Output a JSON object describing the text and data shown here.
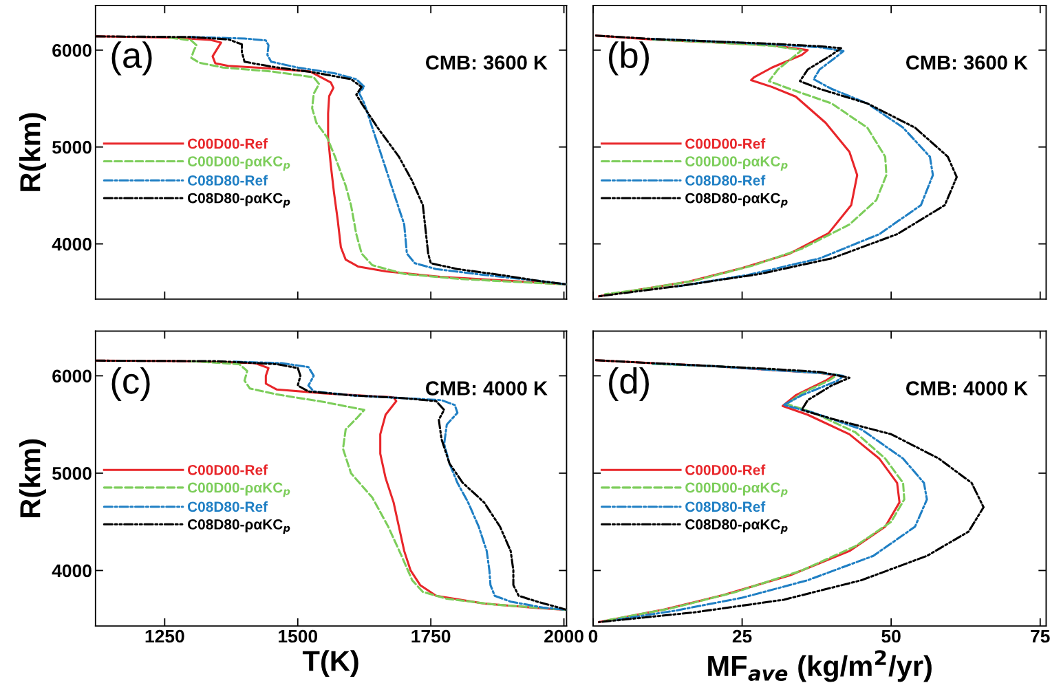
{
  "chart_data": [
    {
      "type": "line",
      "annotations": [
        "(a)",
        "CMB: 3600 K"
      ],
      "ylabel": "R(km)",
      "xlim": [
        1120,
        2005
      ],
      "ylim": [
        3430,
        6460
      ],
      "xticks": [
        1250,
        1500,
        1750,
        2000
      ],
      "yticks": [
        4000,
        5000,
        6000
      ],
      "tick_labels": "y",
      "legend": "left",
      "grid": false,
      "series": [
        {
          "name": "C00D00-Ref",
          "color": "#e8262a",
          "line_style": "solid",
          "x": [
            1122,
            1265,
            1336,
            1356,
            1348,
            1340,
            1345,
            1369,
            1433,
            1523,
            1562,
            1567,
            1559,
            1557,
            1557,
            1562,
            1568,
            1575,
            1581,
            1590,
            1613,
            1665,
            1768,
            1897,
            2005
          ],
          "values": [
            6142,
            6128,
            6106,
            6078,
            6007,
            5936,
            5865,
            5837,
            5816,
            5780,
            5667,
            5610,
            5525,
            5348,
            5100,
            4816,
            4532,
            4249,
            3965,
            3838,
            3767,
            3717,
            3660,
            3618,
            3582
          ]
        },
        {
          "name": "C00D00-ραKC$_{p}$",
          "color": "#7ccd5a",
          "line_style": "dashed",
          "x": [
            1260,
            1300,
            1310,
            1305,
            1300,
            1315,
            1360,
            1450,
            1530,
            1540,
            1530,
            1527,
            1535,
            1555,
            1570,
            1590,
            1600,
            1610,
            1620,
            1640,
            1700,
            1800,
            1900,
            2005
          ],
          "values": [
            6128,
            6100,
            6050,
            6000,
            5920,
            5870,
            5820,
            5780,
            5720,
            5650,
            5550,
            5400,
            5250,
            5100,
            4900,
            4600,
            4400,
            4100,
            3900,
            3780,
            3690,
            3640,
            3610,
            3582
          ]
        },
        {
          "name": "C08D80-Ref",
          "color": "#1f7fc4",
          "line_style": "dashdot",
          "x": [
            1300,
            1400,
            1440,
            1445,
            1443,
            1450,
            1500,
            1570,
            1610,
            1625,
            1615,
            1625,
            1640,
            1655,
            1670,
            1685,
            1700,
            1705,
            1720,
            1760,
            1850,
            1950,
            2005
          ],
          "values": [
            6135,
            6120,
            6100,
            6050,
            5950,
            5880,
            5820,
            5760,
            5700,
            5620,
            5560,
            5450,
            5200,
            4950,
            4700,
            4450,
            4200,
            3900,
            3800,
            3740,
            3680,
            3620,
            3582
          ]
        },
        {
          "name": "C08D80-ραKC$_{p}$",
          "color": "#000000",
          "line_style": "dashdotdot",
          "x": [
            1122,
            1300,
            1370,
            1395,
            1395,
            1400,
            1450,
            1530,
            1600,
            1620,
            1610,
            1620,
            1650,
            1690,
            1715,
            1735,
            1740,
            1745,
            1750,
            1800,
            1880,
            1950,
            2005
          ],
          "values": [
            6142,
            6135,
            6110,
            6060,
            5980,
            5880,
            5830,
            5770,
            5700,
            5620,
            5540,
            5450,
            5200,
            4900,
            4650,
            4400,
            4150,
            3900,
            3800,
            3740,
            3680,
            3620,
            3582
          ]
        }
      ]
    },
    {
      "type": "line",
      "annotations": [
        "(b)",
        "CMB: 3600 K"
      ],
      "xlim": [
        0,
        76
      ],
      "ylim": [
        3430,
        6460
      ],
      "xticks": [
        0,
        25,
        50,
        75
      ],
      "yticks": [
        4000,
        5000,
        6000
      ],
      "tick_labels": false,
      "legend": "left",
      "grid": false,
      "series": [
        {
          "name": "C00D00-Ref",
          "color": "#e8262a",
          "line_style": "solid",
          "x": [
            0.5,
            10,
            20,
            30,
            36,
            35,
            30,
            27,
            26.5,
            30,
            34,
            39,
            43,
            44.3,
            43.3,
            39.5,
            33,
            25,
            16,
            8,
            1
          ],
          "values": [
            6150,
            6110,
            6080,
            6050,
            6000,
            5950,
            5820,
            5720,
            5690,
            5620,
            5520,
            5250,
            4950,
            4710,
            4400,
            4110,
            3900,
            3750,
            3610,
            3530,
            3460
          ]
        },
        {
          "name": "C00D00-ραKC$_{p}$",
          "color": "#7ccd5a",
          "line_style": "dashed",
          "x": [
            10,
            20,
            30,
            35,
            34,
            31,
            29.5,
            33,
            40,
            46,
            49,
            49.2,
            47.5,
            43,
            35,
            27,
            17,
            8,
            2
          ],
          "values": [
            6110,
            6080,
            6045,
            6000,
            5950,
            5800,
            5680,
            5600,
            5450,
            5200,
            4900,
            4710,
            4450,
            4200,
            3950,
            3780,
            3620,
            3530,
            3480
          ]
        },
        {
          "name": "C08D80-Ref",
          "color": "#1f7fc4",
          "line_style": "dashdot",
          "x": [
            10,
            20,
            30,
            38,
            42,
            41,
            38,
            37,
            40,
            46,
            52,
            56.5,
            57,
            55,
            48,
            38,
            26,
            14
          ],
          "values": [
            6115,
            6090,
            6060,
            6030,
            5990,
            5940,
            5800,
            5700,
            5600,
            5450,
            5200,
            4900,
            4710,
            4400,
            4100,
            3850,
            3680,
            3560
          ]
        },
        {
          "name": "C08D80-ραKC$_{p}$",
          "color": "#000000",
          "line_style": "dashdotdot",
          "x": [
            0.5,
            10,
            20,
            30,
            38,
            41.6,
            40,
            36,
            34.7,
            38,
            46,
            54,
            59.5,
            61,
            59,
            51,
            40,
            28,
            15,
            1
          ],
          "values": [
            6150,
            6115,
            6090,
            6065,
            6040,
            6020,
            5950,
            5800,
            5680,
            5600,
            5450,
            5200,
            4900,
            4690,
            4400,
            4100,
            3850,
            3690,
            3570,
            3460
          ]
        }
      ]
    },
    {
      "type": "line",
      "annotations": [
        "(c)",
        "CMB: 4000 K"
      ],
      "xlabel": "T(K)",
      "ylabel": "R(km)",
      "xlim": [
        1120,
        2005
      ],
      "ylim": [
        3430,
        6460
      ],
      "xticks": [
        1250,
        1500,
        1750,
        2000
      ],
      "yticks": [
        4000,
        5000,
        6000
      ],
      "legend": "left",
      "grid": false,
      "series": [
        {
          "name": "C00D00-Ref",
          "color": "#e8262a",
          "line_style": "solid",
          "x": [
            1122,
            1300,
            1420,
            1445,
            1440,
            1440,
            1460,
            1550,
            1640,
            1680,
            1685,
            1665,
            1655,
            1655,
            1665,
            1680,
            1690,
            1700,
            1712,
            1730,
            1760,
            1850,
            1950,
            2005
          ],
          "values": [
            6156,
            6150,
            6130,
            6080,
            6000,
            5920,
            5860,
            5820,
            5790,
            5780,
            5740,
            5600,
            5400,
            5200,
            4950,
            4700,
            4450,
            4200,
            4000,
            3850,
            3740,
            3660,
            3615,
            3596
          ]
        },
        {
          "name": "C00D00-ραKC$_{p}$",
          "color": "#7ccd5a",
          "line_style": "dashed",
          "x": [
            1300,
            1390,
            1405,
            1400,
            1410,
            1460,
            1550,
            1625,
            1610,
            1590,
            1585,
            1600,
            1640,
            1670,
            1695,
            1715,
            1735,
            1780,
            1870,
            2005
          ],
          "values": [
            6150,
            6120,
            6050,
            5950,
            5870,
            5810,
            5730,
            5650,
            5560,
            5450,
            5250,
            5000,
            4750,
            4450,
            4150,
            3900,
            3780,
            3710,
            3650,
            3596
          ]
        },
        {
          "name": "C08D80-Ref",
          "color": "#1f7fc4",
          "line_style": "dashdot",
          "x": [
            1380,
            1470,
            1520,
            1530,
            1520,
            1530,
            1600,
            1700,
            1770,
            1795,
            1800,
            1780,
            1775,
            1785,
            1800,
            1820,
            1840,
            1855,
            1860,
            1862,
            1870,
            1900,
            1960,
            2005
          ],
          "values": [
            6145,
            6130,
            6090,
            6000,
            5900,
            5840,
            5800,
            5770,
            5750,
            5700,
            5620,
            5500,
            5300,
            5100,
            4900,
            4700,
            4450,
            4200,
            4000,
            3850,
            3740,
            3680,
            3620,
            3596
          ]
        },
        {
          "name": "C08D80-ραKC$_{p}$",
          "color": "#000000",
          "line_style": "dashdotdot",
          "x": [
            1122,
            1350,
            1460,
            1500,
            1505,
            1500,
            1520,
            1600,
            1700,
            1760,
            1775,
            1765,
            1770,
            1785,
            1810,
            1850,
            1880,
            1900,
            1905,
            1905,
            1915,
            1950,
            1990,
            2005
          ],
          "values": [
            6156,
            6150,
            6120,
            6080,
            6000,
            5900,
            5840,
            5800,
            5770,
            5740,
            5650,
            5550,
            5350,
            5100,
            4900,
            4700,
            4450,
            4200,
            4000,
            3850,
            3740,
            3680,
            3620,
            3596
          ]
        }
      ]
    },
    {
      "type": "line",
      "annotations": [
        "(d)",
        "CMB: 4000 K"
      ],
      "xlabel": "MF$_{ave}$ (kg/m$^{2}$/yr)",
      "xlim": [
        0,
        76
      ],
      "ylim": [
        3430,
        6460
      ],
      "xticks": [
        0,
        25,
        50,
        75
      ],
      "yticks": [
        4000,
        5000,
        6000
      ],
      "tick_labels": "x",
      "legend": "left",
      "grid": false,
      "series": [
        {
          "name": "C00D00-Ref",
          "color": "#e8262a",
          "line_style": "solid",
          "x": [
            0.5,
            10,
            20,
            30,
            38,
            40.5,
            39,
            34,
            31.8,
            36,
            43,
            48,
            51,
            51.4,
            49,
            43,
            33,
            22,
            12,
            1
          ],
          "values": [
            6160,
            6130,
            6100,
            6060,
            6030,
            6007,
            5950,
            5800,
            5690,
            5600,
            5400,
            5150,
            4900,
            4700,
            4450,
            4200,
            3950,
            3750,
            3600,
            3470
          ]
        },
        {
          "name": "C00D00-ραKC$_{p}$",
          "color": "#7ccd5a",
          "line_style": "dashed",
          "x": [
            10,
            20,
            30,
            38,
            41,
            39.5,
            35,
            32.5,
            37,
            44,
            49,
            52,
            52.2,
            50,
            44,
            35,
            24,
            13,
            2
          ],
          "values": [
            6122,
            6100,
            6065,
            6030,
            6010,
            5950,
            5820,
            5710,
            5620,
            5420,
            5150,
            4900,
            4730,
            4500,
            4250,
            4000,
            3780,
            3610,
            3485
          ]
        },
        {
          "name": "C08D80-Ref",
          "color": "#1f7fc4",
          "line_style": "dashdot",
          "x": [
            10,
            20,
            30,
            38,
            42,
            41,
            35,
            32,
            37,
            45,
            52,
            55.5,
            56,
            54,
            47,
            36,
            25,
            14,
            4
          ],
          "values": [
            6127,
            6100,
            6060,
            6030,
            6000,
            5950,
            5800,
            5700,
            5620,
            5450,
            5150,
            4900,
            4730,
            4450,
            4150,
            3900,
            3720,
            3590,
            3495
          ]
        },
        {
          "name": "C08D80-ραKC$_{p}$",
          "color": "#000000",
          "line_style": "dashdotdot",
          "x": [
            0.5,
            10,
            20,
            30,
            38,
            43,
            40,
            36,
            35,
            40,
            50,
            58,
            63.5,
            65.5,
            63,
            56,
            45,
            32,
            17,
            1
          ],
          "values": [
            6160,
            6130,
            6100,
            6070,
            6040,
            5980,
            5900,
            5750,
            5650,
            5560,
            5400,
            5150,
            4900,
            4650,
            4400,
            4150,
            3900,
            3700,
            3570,
            3470
          ]
        }
      ]
    }
  ]
}
